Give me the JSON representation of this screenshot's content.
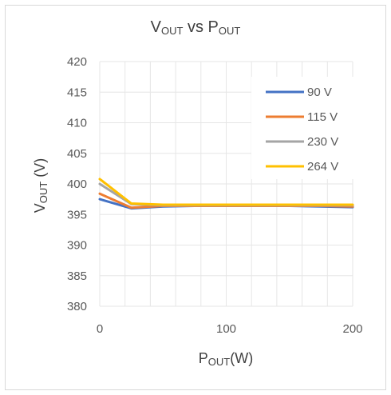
{
  "chart_data": {
    "type": "line",
    "title": {
      "main": "V",
      "main_sub": "OUT",
      "mid": " vs P",
      "mid_sub": "OUT"
    },
    "xlabel": {
      "main": "P",
      "sub": "OUT",
      "rest": "(W)"
    },
    "ylabel": {
      "main": "V",
      "sub": "OUT",
      "rest": " (V)"
    },
    "xlim": [
      0,
      200
    ],
    "ylim": [
      380,
      420
    ],
    "xticks": [
      0,
      100,
      200
    ],
    "yticks": [
      380,
      385,
      390,
      395,
      400,
      405,
      410,
      415,
      420
    ],
    "grid": true,
    "legend_position": "right",
    "x": [
      0,
      25,
      50,
      75,
      100,
      125,
      150,
      175,
      200
    ],
    "series": [
      {
        "name": "90 V",
        "color": "#4472c4",
        "values": [
          397.5,
          396.0,
          396.3,
          396.4,
          396.4,
          396.4,
          396.4,
          396.3,
          396.2
        ]
      },
      {
        "name": "115 V",
        "color": "#ed7d31",
        "values": [
          398.4,
          396.1,
          396.4,
          396.4,
          396.4,
          396.4,
          396.4,
          396.4,
          396.3
        ]
      },
      {
        "name": "230 V",
        "color": "#a5a5a5",
        "values": [
          400.0,
          396.7,
          396.5,
          396.5,
          396.5,
          396.5,
          396.5,
          396.5,
          396.5
        ]
      },
      {
        "name": "264 V",
        "color": "#ffc000",
        "values": [
          400.8,
          396.8,
          396.6,
          396.6,
          396.6,
          396.6,
          396.6,
          396.6,
          396.6
        ]
      }
    ]
  }
}
